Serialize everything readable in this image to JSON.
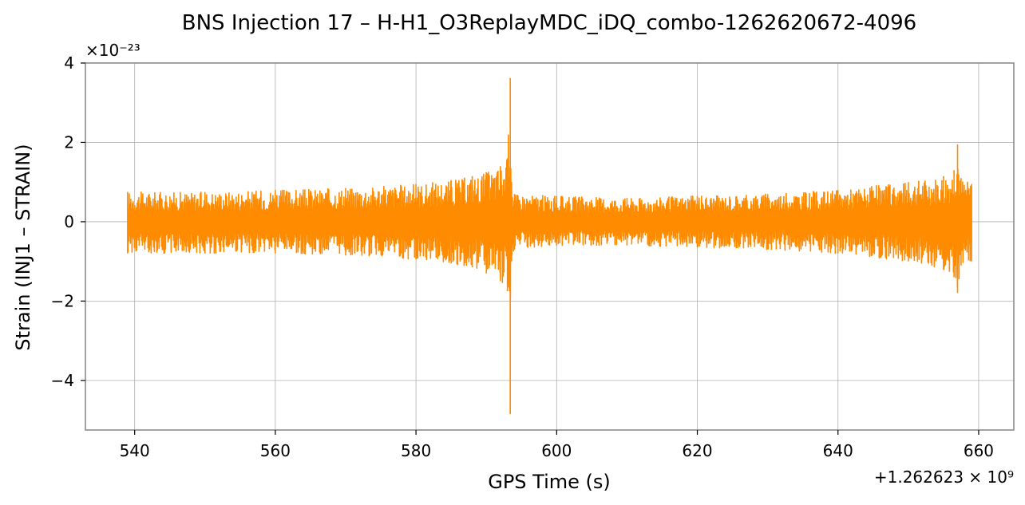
{
  "chart_data": {
    "type": "line",
    "title": "BNS Injection 17 – H-H1_O3ReplayMDC_iDQ_combo-1262620672-4096",
    "xlabel": "GPS Time (s)",
    "ylabel": "Strain (INJ1 – STRAIN)",
    "x_offset_label": "+1.262623 × 10⁹",
    "y_scale_label": "×10⁻²³",
    "xlim": [
      533,
      665
    ],
    "ylim": [
      -5.25,
      4.0
    ],
    "x_ticks": [
      540,
      560,
      580,
      600,
      620,
      640,
      660
    ],
    "x_tick_labels": [
      "540",
      "560",
      "580",
      "600",
      "620",
      "640",
      "660"
    ],
    "y_ticks": [
      -4,
      -2,
      0,
      2,
      4
    ],
    "y_tick_labels": [
      "−4",
      "−2",
      "0",
      "2",
      "4"
    ],
    "grid": true,
    "series": [
      {
        "color": "#ff8c00",
        "x_start": 539,
        "x_end": 659,
        "envelope": {
          "x": [
            539,
            550,
            560,
            570,
            580,
            585,
            588,
            590,
            592,
            593.0,
            593.4,
            593.6,
            594.0,
            600,
            610,
            620,
            630,
            640,
            650,
            655,
            656.5,
            657.0,
            657.5,
            659
          ],
          "upper": [
            0.75,
            0.75,
            0.8,
            0.85,
            0.95,
            1.05,
            1.15,
            1.25,
            1.4,
            1.6,
            3.62,
            1.0,
            0.7,
            0.65,
            0.6,
            0.65,
            0.7,
            0.8,
            1.0,
            1.15,
            1.3,
            1.95,
            1.1,
            0.95
          ],
          "lower": [
            -0.8,
            -0.8,
            -0.8,
            -0.85,
            -0.95,
            -1.05,
            -1.15,
            -1.3,
            -1.5,
            -1.75,
            -4.85,
            -1.0,
            -0.7,
            -0.6,
            -0.6,
            -0.65,
            -0.7,
            -0.8,
            -1.0,
            -1.2,
            -1.4,
            -1.8,
            -1.1,
            -1.0
          ]
        }
      }
    ]
  }
}
